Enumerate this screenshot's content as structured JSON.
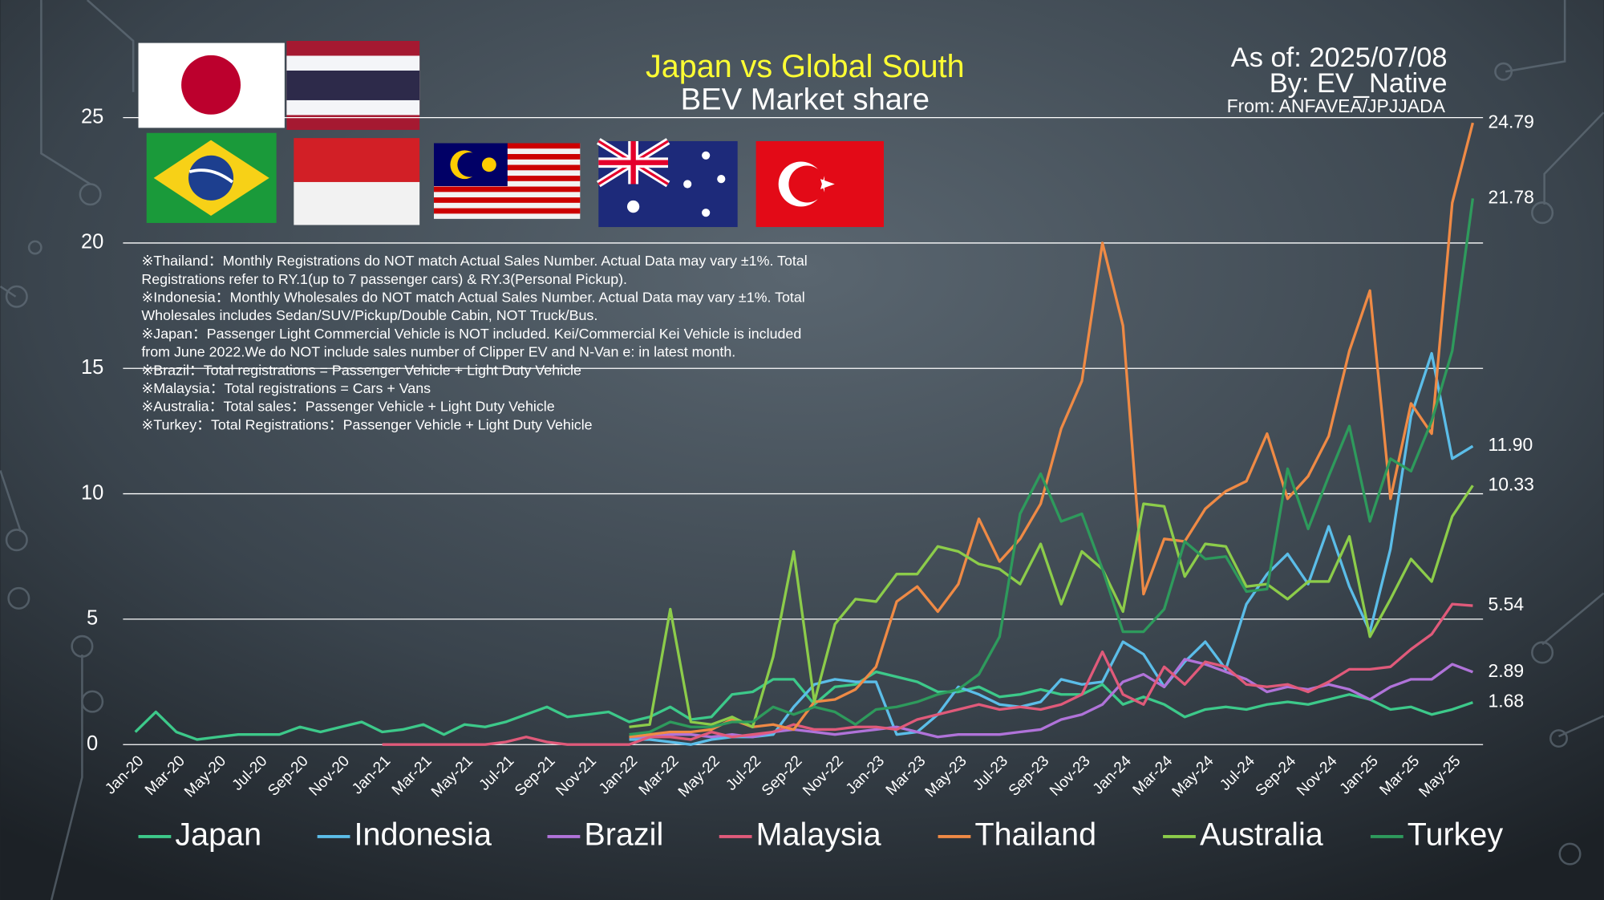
{
  "chart_data": {
    "type": "line",
    "title": "Japan vs Global South",
    "subtitle": "BEV Market share",
    "annotations": [
      "As of: 2025/07/08",
      "By: EV_Native",
      "From: ANFAVEA/JPJJADA"
    ],
    "notes": [
      "※Thailand：Monthly Registrations do NOT match Actual Sales Number. Actual Data may vary ±1%. Total",
      "Registrations refer to RY.1(up to 7 passenger cars) & RY.3(Personal Pickup).",
      "※Indonesia：Monthly Wholesales do NOT match Actual Sales Number. Actual Data may vary ±1%. Total",
      "Wholesales includes Sedan/SUV/Pickup/Double Cabin, NOT Truck/Bus.",
      "※Japan：Passenger Light Commercial Vehicle is NOT included. Kei/Commercial Kei Vehicle is included",
      "from June 2022.We do NOT include sales number of Clipper EV and N-Van e: in latest month.",
      "※Brazil：Total registrations = Passenger Vehicle + Light Duty Vehicle",
      "※Malaysia：Total registrations = Cars + Vans",
      "※Australia：Total sales：Passenger Vehicle + Light Duty Vehicle",
      "※Turkey：Total Registrations：Passenger Vehicle + Light Duty Vehicle"
    ],
    "categories": [
      "Jan-20",
      null,
      "Mar-20",
      null,
      "May-20",
      null,
      "Jul-20",
      null,
      "Sep-20",
      null,
      "Nov-20",
      null,
      "Jan-21",
      null,
      "Mar-21",
      null,
      "May-21",
      null,
      "Jul-21",
      null,
      "Sep-21",
      null,
      "Nov-21",
      null,
      "Jan-22",
      null,
      "Mar-22",
      null,
      "May-22",
      null,
      "Jul-22",
      null,
      "Sep-22",
      null,
      "Nov-22",
      null,
      "Jan-23",
      null,
      "Mar-23",
      null,
      "May-23",
      null,
      "Jul-23",
      null,
      "Sep-23",
      null,
      "Nov-23",
      null,
      "Jan-24",
      null,
      "Mar-24",
      null,
      "May-24",
      null,
      "Jul-24",
      null,
      "Sep-24",
      null,
      "Nov-24",
      null,
      "Jan-25",
      null,
      "Mar-25",
      null,
      "May-25",
      null
    ],
    "ylim": [
      0,
      25
    ],
    "yticks": [
      0,
      5,
      10,
      15,
      20,
      25
    ],
    "grid": true,
    "series": [
      {
        "name": "Japan",
        "color": "#3dc98a",
        "values": [
          0.5,
          1.3,
          0.5,
          0.2,
          0.3,
          0.4,
          0.4,
          0.4,
          0.7,
          0.5,
          0.7,
          0.9,
          0.5,
          0.6,
          0.8,
          0.4,
          0.8,
          0.7,
          0.9,
          1.2,
          1.5,
          1.1,
          1.2,
          1.3,
          0.9,
          1.1,
          1.5,
          1.0,
          1.1,
          2.0,
          2.1,
          2.6,
          2.6,
          1.6,
          2.3,
          2.4,
          2.9,
          2.7,
          2.5,
          2.1,
          2.1,
          2.3,
          1.9,
          2.0,
          2.2,
          2.0,
          2.0,
          2.4,
          1.6,
          1.9,
          1.6,
          1.1,
          1.4,
          1.5,
          1.4,
          1.6,
          1.7,
          1.6,
          1.8,
          2.0,
          1.8,
          1.4,
          1.5,
          1.2,
          1.4,
          1.68
        ]
      },
      {
        "name": "Indonesia",
        "color": "#5bbde8",
        "values": [
          null,
          null,
          null,
          null,
          null,
          null,
          null,
          null,
          null,
          null,
          null,
          null,
          null,
          null,
          null,
          null,
          null,
          null,
          null,
          null,
          null,
          null,
          null,
          null,
          0.2,
          0.2,
          0.1,
          0.0,
          0.2,
          0.3,
          0.3,
          0.4,
          1.5,
          2.4,
          2.6,
          2.5,
          2.5,
          0.4,
          0.5,
          1.2,
          2.3,
          2.0,
          1.6,
          1.5,
          1.7,
          2.6,
          2.4,
          2.5,
          4.1,
          3.6,
          2.3,
          3.3,
          4.1,
          3.0,
          5.6,
          6.8,
          7.6,
          6.4,
          8.7,
          6.3,
          4.5,
          7.8,
          13.1,
          15.6,
          11.4,
          11.9
        ],
        "value_labels": [
          null,
          null,
          null,
          null,
          null,
          null,
          null,
          null,
          null,
          null,
          null,
          null,
          null,
          null,
          null,
          null,
          null,
          null,
          null,
          null,
          null,
          null,
          null,
          null,
          null,
          null,
          null,
          null,
          null,
          null,
          null,
          null,
          null,
          null,
          null,
          null,
          null,
          null,
          null,
          null,
          null,
          null,
          null,
          null,
          null,
          null,
          null,
          null,
          null,
          null,
          null,
          null,
          null,
          null,
          null,
          null,
          null,
          null,
          null,
          null,
          null,
          null,
          null,
          null,
          null,
          "11.90"
        ]
      },
      {
        "name": "Brazil",
        "color": "#b073d9",
        "values": [
          null,
          null,
          null,
          null,
          null,
          null,
          null,
          null,
          null,
          null,
          null,
          null,
          null,
          null,
          null,
          null,
          null,
          null,
          null,
          null,
          null,
          null,
          null,
          null,
          0.3,
          0.3,
          0.4,
          0.4,
          0.3,
          0.4,
          0.3,
          0.5,
          0.6,
          0.5,
          0.4,
          0.5,
          0.6,
          0.7,
          0.5,
          0.3,
          0.4,
          0.4,
          0.4,
          0.5,
          0.6,
          1.0,
          1.2,
          1.6,
          2.5,
          2.8,
          2.3,
          3.4,
          3.2,
          2.9,
          2.6,
          2.1,
          2.3,
          2.2,
          2.4,
          2.2,
          1.8,
          2.3,
          2.6,
          2.6,
          3.2,
          2.89
        ]
      },
      {
        "name": "Malaysia",
        "color": "#e05a7a",
        "values": [
          null,
          null,
          null,
          null,
          null,
          null,
          null,
          null,
          null,
          null,
          null,
          null,
          0.0,
          0.0,
          0.0,
          0.0,
          0.0,
          0.0,
          0.1,
          0.3,
          0.1,
          0.0,
          0.0,
          0.0,
          0.0,
          0.3,
          0.3,
          0.2,
          0.5,
          0.3,
          0.4,
          0.5,
          0.8,
          0.6,
          0.6,
          0.7,
          0.7,
          0.6,
          1.0,
          1.2,
          1.4,
          1.6,
          1.4,
          1.5,
          1.4,
          1.6,
          2.0,
          3.7,
          2.0,
          1.6,
          3.1,
          2.4,
          3.3,
          3.1,
          2.4,
          2.3,
          2.4,
          2.1,
          2.5,
          3.0,
          3.0,
          3.1,
          3.8,
          4.4,
          5.6,
          5.54
        ]
      },
      {
        "name": "Thailand",
        "color": "#ef8a45",
        "values": [
          null,
          null,
          null,
          null,
          null,
          null,
          null,
          null,
          null,
          null,
          null,
          null,
          null,
          null,
          null,
          null,
          null,
          null,
          null,
          null,
          null,
          null,
          null,
          null,
          0.3,
          0.4,
          0.5,
          0.5,
          0.6,
          1.0,
          0.7,
          0.8,
          0.6,
          1.7,
          1.8,
          2.2,
          3.1,
          5.7,
          6.3,
          5.3,
          6.4,
          9.0,
          7.3,
          8.2,
          9.6,
          12.6,
          14.5,
          20.0,
          16.7,
          6.0,
          8.2,
          8.1,
          9.4,
          10.1,
          10.5,
          12.4,
          9.8,
          10.7,
          12.3,
          15.7,
          18.1,
          9.8,
          13.6,
          12.4,
          21.6,
          24.79
        ]
      },
      {
        "name": "Australia",
        "color": "#8ccc4a",
        "values": [
          null,
          null,
          null,
          null,
          null,
          null,
          null,
          null,
          null,
          null,
          null,
          null,
          null,
          null,
          null,
          null,
          null,
          null,
          null,
          null,
          null,
          null,
          null,
          null,
          0.7,
          0.8,
          5.4,
          0.9,
          0.8,
          1.1,
          0.7,
          3.5,
          7.7,
          1.7,
          4.8,
          5.8,
          5.7,
          6.8,
          6.8,
          7.9,
          7.7,
          7.2,
          7.0,
          6.4,
          8.0,
          5.6,
          7.7,
          7.0,
          5.3,
          9.6,
          9.5,
          6.7,
          8.0,
          7.9,
          6.3,
          6.4,
          5.8,
          6.5,
          6.5,
          8.3,
          4.3,
          5.8,
          7.4,
          6.5,
          9.1,
          10.33
        ]
      },
      {
        "name": "Turkey",
        "color": "#2e9a5c",
        "values": [
          null,
          null,
          null,
          null,
          null,
          null,
          null,
          null,
          null,
          null,
          null,
          null,
          null,
          null,
          null,
          null,
          null,
          null,
          null,
          null,
          null,
          null,
          null,
          null,
          0.4,
          0.5,
          0.9,
          0.7,
          0.7,
          0.9,
          0.9,
          1.5,
          1.2,
          1.5,
          1.3,
          0.8,
          1.4,
          1.5,
          1.7,
          2.0,
          2.2,
          2.8,
          4.3,
          9.2,
          10.8,
          8.9,
          9.2,
          7.0,
          4.5,
          4.5,
          5.4,
          8.1,
          7.4,
          7.5,
          6.1,
          6.2,
          11.0,
          8.6,
          10.7,
          12.7,
          8.9,
          11.4,
          10.9,
          12.9,
          15.7,
          21.78
        ]
      }
    ]
  }
}
